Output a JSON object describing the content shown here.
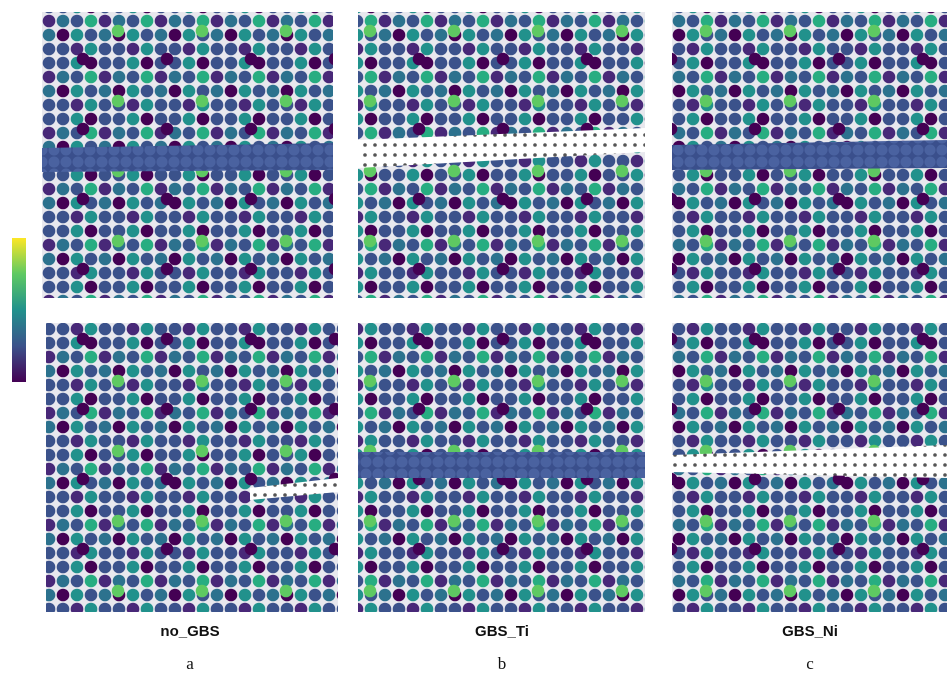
{
  "panels": [
    {
      "name": "no_GBS",
      "letter": "a"
    },
    {
      "name": "GBS_Ti",
      "letter": "b"
    },
    {
      "name": "GBS_Ni",
      "letter": "c"
    }
  ]
}
